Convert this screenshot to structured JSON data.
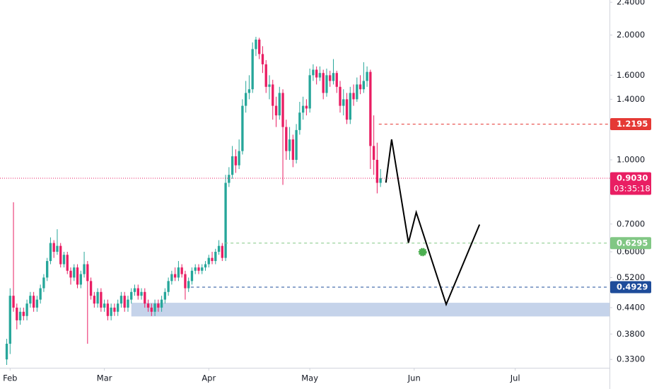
{
  "chart_data": {
    "type": "candlestick",
    "log_scale": true,
    "up_color": "#26a69a",
    "down_color": "#e91e63",
    "xlim": [
      -3,
      178
    ],
    "xticks": [
      {
        "value": 0,
        "label": "Feb"
      },
      {
        "value": 28,
        "label": "Mar"
      },
      {
        "value": 59,
        "label": "Apr"
      },
      {
        "value": 89,
        "label": "May"
      },
      {
        "value": 120,
        "label": "Jun"
      },
      {
        "value": 150,
        "label": "Jul"
      }
    ],
    "ylim": [
      0.315,
      2.43
    ],
    "yticks": [
      {
        "value": 2.4,
        "label": "2.4000"
      },
      {
        "value": 2,
        "label": "2.0000"
      },
      {
        "value": 1.6,
        "label": "1.6000"
      },
      {
        "value": 1.4,
        "label": "1.4000"
      },
      {
        "value": 1,
        "label": "1.0000"
      },
      {
        "value": 0.7,
        "label": "0.7000"
      },
      {
        "value": 0.6,
        "label": "0.6000"
      },
      {
        "value": 0.52,
        "label": "0.5200"
      },
      {
        "value": 0.44,
        "label": "0.4400"
      },
      {
        "value": 0.38,
        "label": "0.3800"
      },
      {
        "value": 0.33,
        "label": "0.3300"
      }
    ],
    "x": [
      -1,
      0,
      1,
      2,
      3,
      4,
      5,
      6,
      7,
      8,
      9,
      10,
      11,
      12,
      13,
      14,
      15,
      16,
      17,
      18,
      19,
      20,
      21,
      22,
      23,
      24,
      25,
      26,
      27,
      28,
      29,
      30,
      31,
      32,
      33,
      34,
      35,
      36,
      37,
      38,
      39,
      40,
      41,
      42,
      43,
      44,
      45,
      46,
      47,
      48,
      49,
      50,
      51,
      52,
      53,
      54,
      55,
      56,
      57,
      58,
      59,
      60,
      61,
      62,
      63,
      64,
      65,
      66,
      67,
      68,
      69,
      70,
      71,
      72,
      73,
      74,
      75,
      76,
      77,
      78,
      79,
      80,
      81,
      82,
      83,
      84,
      85,
      86,
      87,
      88,
      89,
      90,
      91,
      92,
      93,
      94,
      95,
      96,
      97,
      98,
      99,
      100,
      101,
      102,
      103,
      104,
      105,
      106,
      107,
      108,
      109,
      110
    ],
    "open": [
      0.33,
      0.36,
      0.47,
      0.44,
      0.41,
      0.43,
      0.42,
      0.45,
      0.47,
      0.44,
      0.46,
      0.49,
      0.52,
      0.57,
      0.63,
      0.6,
      0.62,
      0.56,
      0.59,
      0.54,
      0.52,
      0.55,
      0.5,
      0.53,
      0.56,
      0.51,
      0.47,
      0.45,
      0.48,
      0.44,
      0.45,
      0.42,
      0.44,
      0.43,
      0.45,
      0.47,
      0.44,
      0.46,
      0.48,
      0.49,
      0.47,
      0.48,
      0.45,
      0.44,
      0.43,
      0.45,
      0.44,
      0.46,
      0.48,
      0.51,
      0.53,
      0.52,
      0.55,
      0.53,
      0.49,
      0.51,
      0.54,
      0.55,
      0.54,
      0.55,
      0.56,
      0.58,
      0.57,
      0.6,
      0.62,
      0.58,
      0.88,
      0.92,
      1.02,
      0.97,
      1.05,
      1.35,
      1.45,
      1.48,
      1.85,
      1.95,
      1.8,
      1.7,
      1.5,
      1.52,
      1.35,
      1.28,
      1.45,
      1.2,
      1.05,
      1.12,
      1.0,
      1.18,
      1.3,
      1.35,
      1.33,
      1.6,
      1.65,
      1.58,
      1.62,
      1.45,
      1.6,
      1.55,
      1.62,
      1.5,
      1.35,
      1.4,
      1.25,
      1.45,
      1.4,
      1.52,
      1.48,
      1.55,
      1.63,
      1.08,
      1.0,
      0.88
    ],
    "high": [
      0.37,
      0.49,
      0.79,
      0.45,
      0.44,
      0.44,
      0.46,
      0.48,
      0.48,
      0.47,
      0.5,
      0.53,
      0.58,
      0.65,
      0.64,
      0.68,
      0.63,
      0.6,
      0.6,
      0.55,
      0.56,
      0.56,
      0.54,
      0.6,
      0.57,
      0.52,
      0.48,
      0.49,
      0.49,
      0.46,
      0.46,
      0.45,
      0.45,
      0.46,
      0.48,
      0.48,
      0.47,
      0.49,
      0.5,
      0.5,
      0.49,
      0.49,
      0.46,
      0.45,
      0.46,
      0.46,
      0.47,
      0.49,
      0.52,
      0.54,
      0.55,
      0.57,
      0.56,
      0.54,
      0.52,
      0.55,
      0.56,
      0.56,
      0.56,
      0.57,
      0.59,
      0.6,
      0.61,
      0.64,
      0.63,
      0.92,
      0.96,
      1.08,
      1.06,
      1.12,
      1.4,
      1.55,
      1.6,
      1.92,
      1.98,
      1.97,
      1.88,
      1.74,
      1.6,
      1.56,
      1.42,
      1.5,
      1.48,
      1.25,
      1.2,
      1.15,
      1.22,
      1.38,
      1.42,
      1.4,
      1.66,
      1.7,
      1.68,
      1.68,
      1.65,
      1.66,
      1.64,
      1.75,
      1.64,
      1.55,
      1.48,
      1.45,
      1.5,
      1.52,
      1.58,
      1.6,
      1.72,
      1.68,
      1.65,
      1.28,
      1.1,
      0.95
    ],
    "low": [
      0.32,
      0.34,
      0.43,
      0.39,
      0.4,
      0.41,
      0.41,
      0.44,
      0.43,
      0.43,
      0.45,
      0.48,
      0.51,
      0.56,
      0.58,
      0.59,
      0.55,
      0.55,
      0.53,
      0.5,
      0.51,
      0.49,
      0.49,
      0.52,
      0.36,
      0.46,
      0.44,
      0.44,
      0.43,
      0.43,
      0.41,
      0.41,
      0.42,
      0.42,
      0.44,
      0.43,
      0.43,
      0.45,
      0.47,
      0.46,
      0.46,
      0.44,
      0.43,
      0.42,
      0.42,
      0.43,
      0.43,
      0.45,
      0.47,
      0.5,
      0.51,
      0.51,
      0.52,
      0.46,
      0.48,
      0.5,
      0.53,
      0.53,
      0.53,
      0.54,
      0.55,
      0.56,
      0.56,
      0.59,
      0.57,
      0.57,
      0.86,
      0.9,
      0.93,
      0.95,
      1.03,
      1.3,
      1.4,
      1.45,
      1.78,
      1.75,
      1.62,
      1.45,
      1.4,
      1.25,
      1.2,
      1.25,
      0.87,
      1.0,
      1.0,
      0.96,
      0.98,
      1.15,
      1.25,
      1.28,
      1.3,
      1.55,
      1.52,
      1.55,
      1.4,
      1.42,
      1.5,
      1.52,
      1.45,
      1.3,
      1.28,
      1.22,
      1.22,
      1.35,
      1.38,
      1.44,
      1.45,
      1.5,
      0.95,
      0.92,
      0.83,
      0.86
    ],
    "close": [
      0.36,
      0.47,
      0.44,
      0.41,
      0.43,
      0.42,
      0.45,
      0.47,
      0.44,
      0.46,
      0.49,
      0.52,
      0.57,
      0.63,
      0.6,
      0.62,
      0.56,
      0.59,
      0.54,
      0.52,
      0.55,
      0.5,
      0.53,
      0.56,
      0.51,
      0.47,
      0.45,
      0.48,
      0.44,
      0.45,
      0.42,
      0.44,
      0.43,
      0.45,
      0.47,
      0.44,
      0.46,
      0.48,
      0.49,
      0.47,
      0.48,
      0.45,
      0.44,
      0.43,
      0.45,
      0.44,
      0.46,
      0.48,
      0.51,
      0.53,
      0.52,
      0.55,
      0.53,
      0.49,
      0.51,
      0.54,
      0.55,
      0.54,
      0.55,
      0.56,
      0.58,
      0.57,
      0.6,
      0.62,
      0.58,
      0.88,
      0.92,
      1.02,
      0.97,
      1.05,
      1.35,
      1.45,
      1.48,
      1.85,
      1.95,
      1.8,
      1.7,
      1.5,
      1.52,
      1.35,
      1.28,
      1.45,
      1.2,
      1.05,
      1.12,
      1.0,
      1.18,
      1.3,
      1.35,
      1.33,
      1.6,
      1.65,
      1.58,
      1.62,
      1.45,
      1.6,
      1.55,
      1.62,
      1.5,
      1.35,
      1.4,
      1.25,
      1.45,
      1.4,
      1.52,
      1.48,
      1.55,
      1.63,
      1.08,
      1.0,
      0.88,
      0.903
    ],
    "zone": {
      "x": [
        36,
        178
      ],
      "y": [
        0.419,
        0.452
      ],
      "color": "#c5d3ea"
    },
    "levels": [
      {
        "value": 1.2195,
        "label": "1.2195",
        "from": 109.5,
        "color": "#e53935",
        "style": "dashed"
      },
      {
        "value": 0.903,
        "label": "0.9030",
        "from": -3,
        "color": "#e91e63",
        "style": "dotted",
        "countdown": "03:35:18"
      },
      {
        "value": 0.6295,
        "label": "0.6295",
        "from": 63.8,
        "color": "#81c784",
        "style": "dashed"
      },
      {
        "value": 0.4929,
        "label": "0.4929",
        "from": 53.7,
        "color": "#1e4c9a",
        "style": "dashed"
      }
    ],
    "projection": {
      "x": [
        111.6,
        113.3,
        118.3,
        120.6,
        129.5,
        139.4
      ],
      "y": [
        0.881,
        1.12,
        0.631,
        0.747,
        0.448,
        0.698
      ],
      "color": "#000000"
    },
    "marker": {
      "x": 122.5,
      "y": 0.599,
      "color": "#4caf50"
    }
  }
}
